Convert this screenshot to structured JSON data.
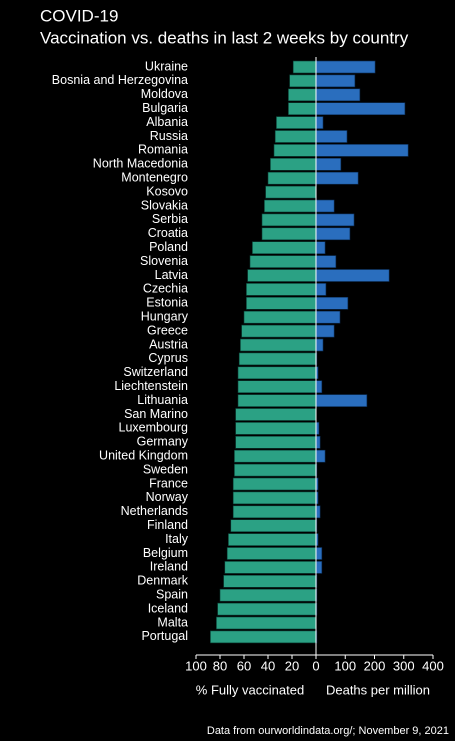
{
  "chart_data": {
    "type": "butterfly",
    "title": "COVID-19",
    "subtitle": "Vaccination vs. deaths in last 2 weeks by country",
    "source": "Data from ourworldindata.org/;  November 9, 2021",
    "categories": [
      "Ukraine",
      "Bosnia and Herzegovina",
      "Moldova",
      "Bulgaria",
      "Albania",
      "Russia",
      "Romania",
      "North Macedonia",
      "Montenegro",
      "Kosovo",
      "Slovakia",
      "Serbia",
      "Croatia",
      "Poland",
      "Slovenia",
      "Latvia",
      "Czechia",
      "Estonia",
      "Hungary",
      "Greece",
      "Austria",
      "Cyprus",
      "Switzerland",
      "Liechtenstein",
      "Lithuania",
      "San Marino",
      "Luxembourg",
      "Germany",
      "United Kingdom",
      "Sweden",
      "France",
      "Norway",
      "Netherlands",
      "Finland",
      "Italy",
      "Belgium",
      "Ireland",
      "Denmark",
      "Spain",
      "Iceland",
      "Malta",
      "Portugal"
    ],
    "series": [
      {
        "name": "% Fully vaccinated",
        "color": "#2ba184",
        "values": [
          19,
          22,
          23,
          23,
          33,
          34,
          35,
          38,
          40,
          42,
          43,
          45,
          45,
          53,
          55,
          57,
          58,
          58,
          60,
          62,
          63,
          64,
          65,
          65,
          65,
          67,
          67,
          67,
          68,
          68,
          69,
          69,
          69,
          71,
          73,
          74,
          76,
          77,
          80,
          82,
          83,
          88
        ]
      },
      {
        "name": "Deaths per million",
        "color": "#2a6ebe",
        "axis": "x2",
        "values": [
          202,
          133,
          150,
          304,
          24,
          106,
          315,
          85,
          144,
          1,
          62,
          130,
          116,
          31,
          68,
          250,
          34,
          109,
          82,
          62,
          24,
          3,
          7,
          20,
          174,
          0,
          10,
          14,
          31,
          3,
          7,
          7,
          14,
          3,
          7,
          20,
          20,
          3,
          3,
          3,
          1,
          3
        ]
      }
    ],
    "xlim": [
      100,
      0
    ],
    "xticks": [
      100,
      80,
      60,
      40,
      20,
      0
    ],
    "x2lim": [
      0,
      400
    ],
    "x2ticks": [
      100,
      200,
      300,
      400
    ]
  }
}
